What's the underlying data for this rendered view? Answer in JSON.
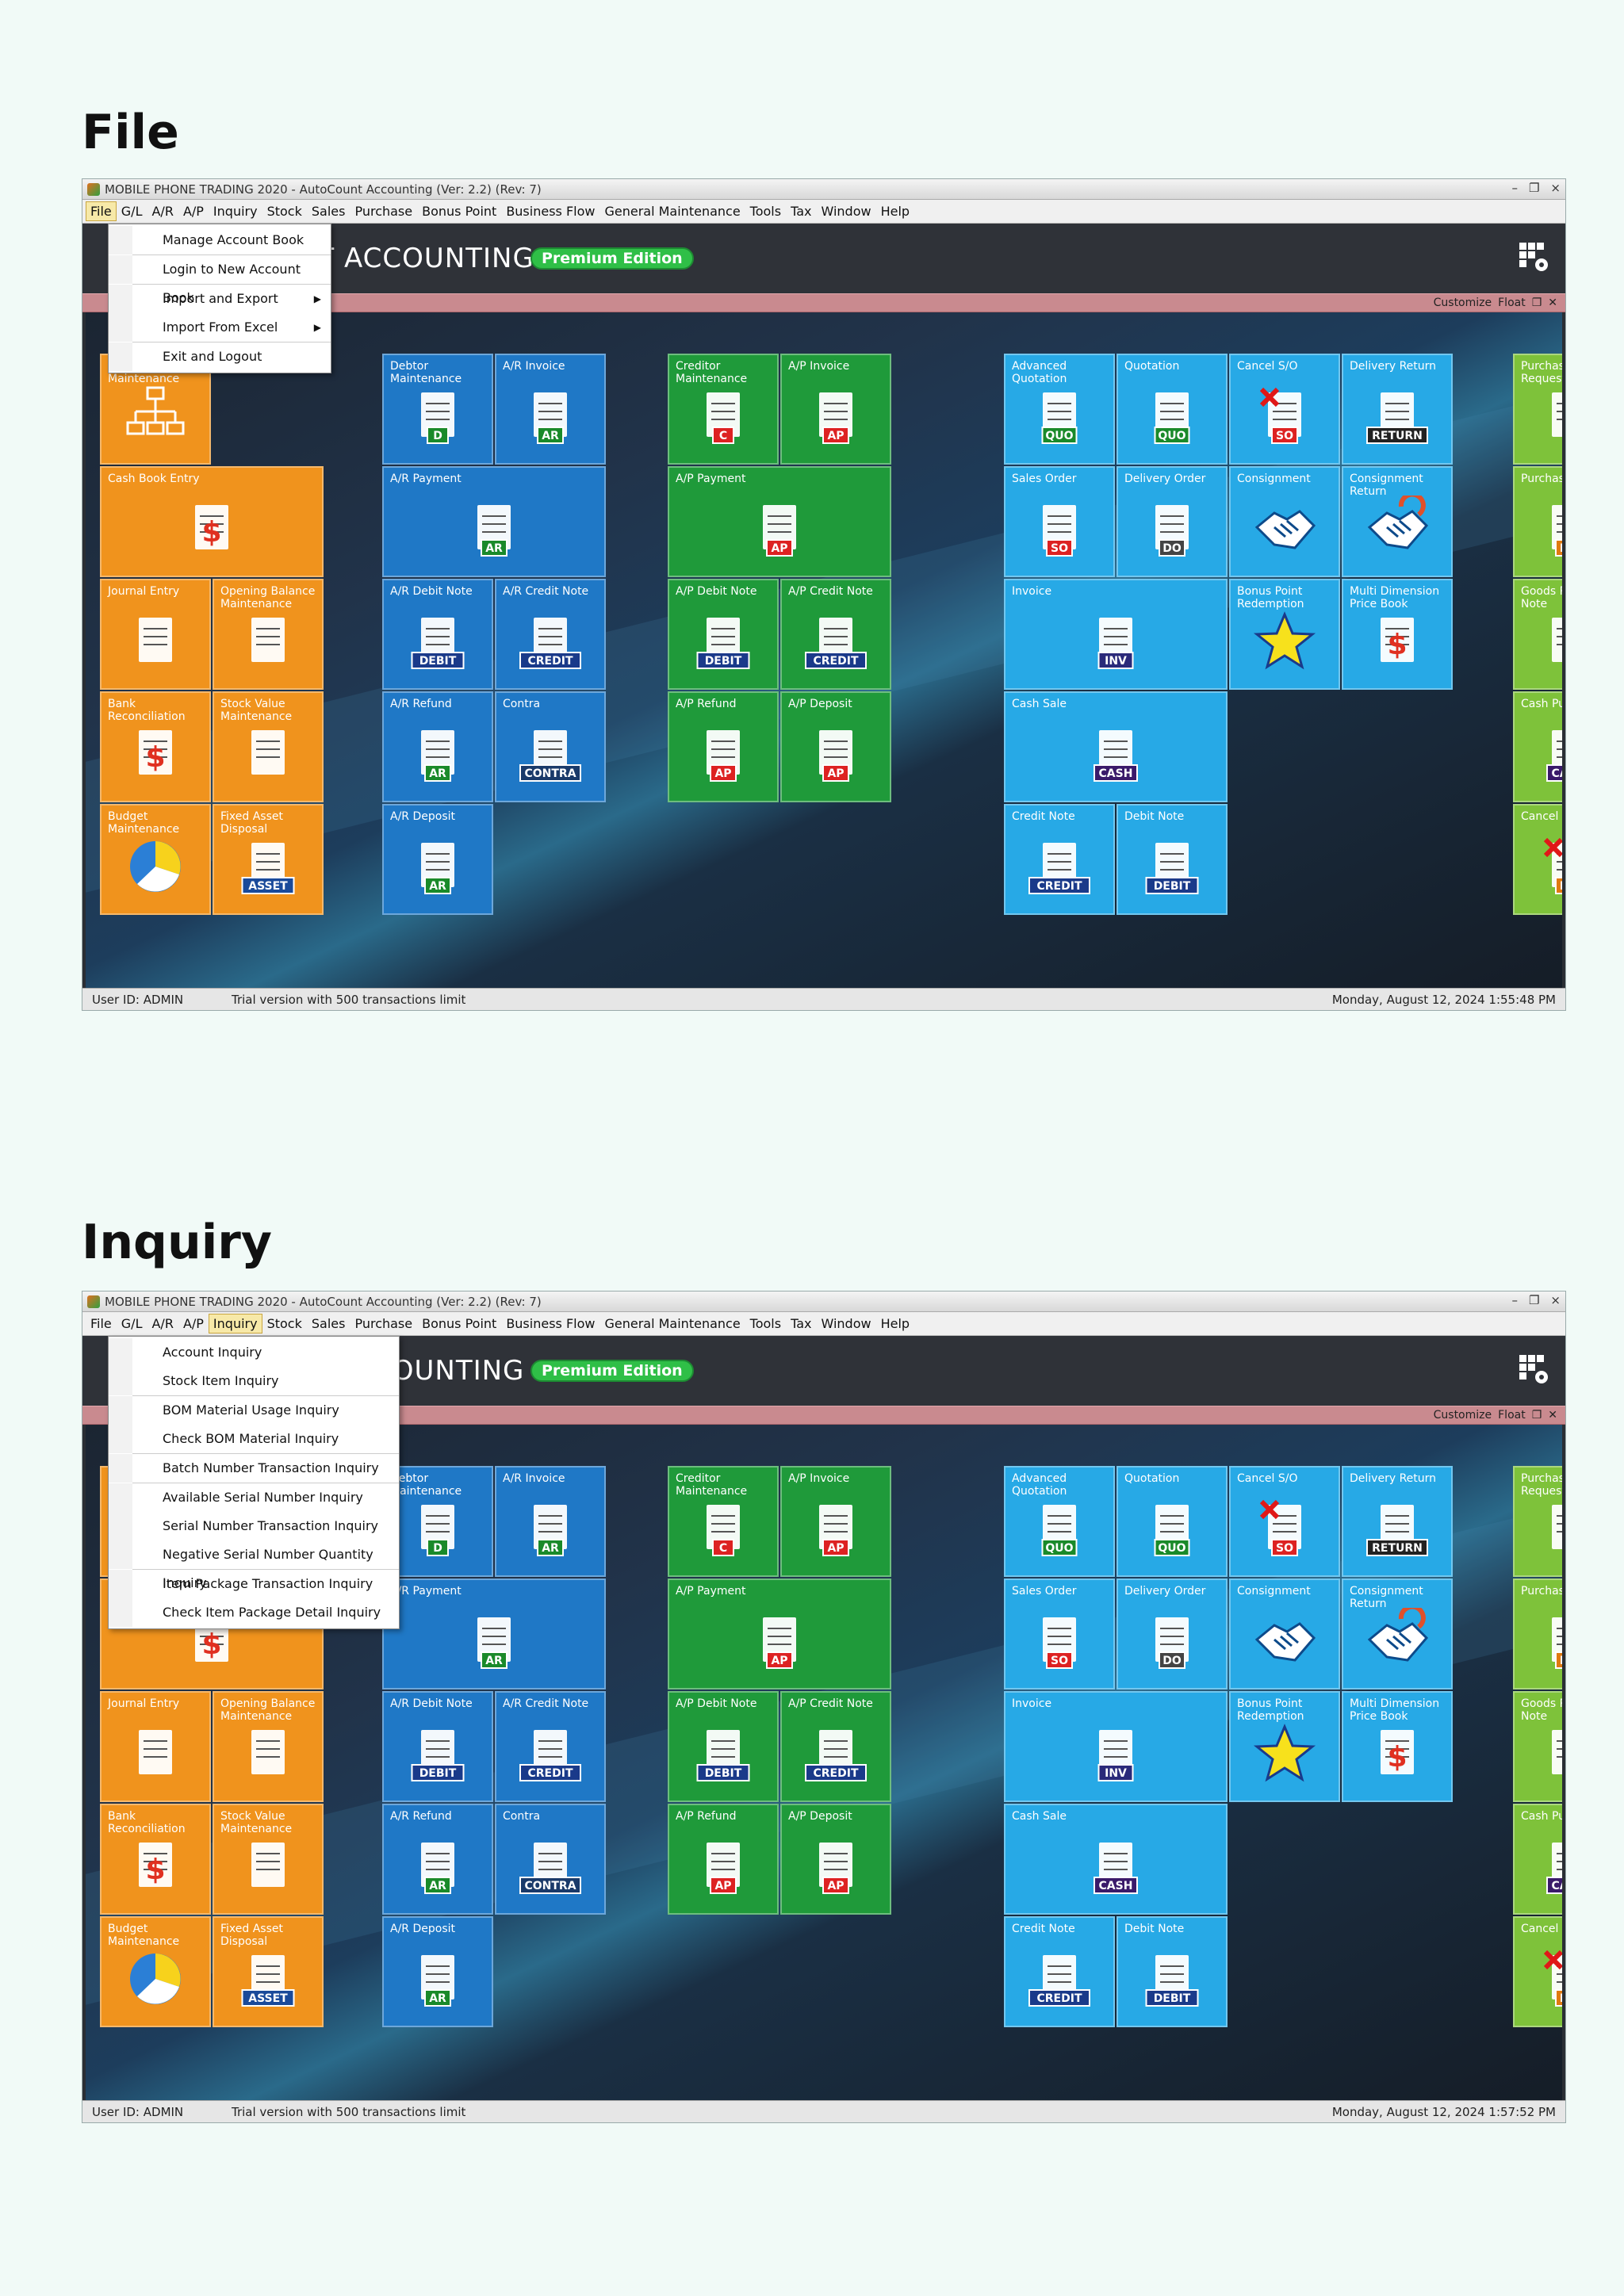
{
  "sections": [
    {
      "heading": "File",
      "window_title": "MOBILE PHONE TRADING 2020 - AutoCount Accounting (Ver: 2.2) (Rev: 7)",
      "active_menu": "File",
      "dropdown": [
        "Manage Account Book",
        "Login to New Account Book",
        "Import and Export",
        "Import From Excel",
        "Exit and Logout"
      ],
      "brand": "NT ACCOUNTING",
      "datetime": "Monday, August 12, 2024  1:55:48 PM"
    },
    {
      "heading": "Inquiry",
      "window_title": "MOBILE PHONE TRADING 2020 - AutoCount Accounting (Ver: 2.2) (Rev: 7)",
      "active_menu": "Inquiry",
      "dropdown": [
        "Account Inquiry",
        "Stock Item Inquiry",
        "BOM Material Usage Inquiry",
        "Check BOM Material Inquiry",
        "Batch Number Transaction Inquiry",
        "Available Serial Number Inquiry",
        "Serial Number Transaction Inquiry",
        "Negative Serial Number Quantity Inquiry",
        "Item Package Transaction Inquiry",
        "Check Item Package Detail Inquiry"
      ],
      "brand": "COUNTING",
      "datetime": "Monday, August 12, 2024  1:57:52 PM"
    }
  ],
  "menu": [
    "File",
    "G/L",
    "A/R",
    "A/P",
    "Inquiry",
    "Stock",
    "Sales",
    "Purchase",
    "Bonus Point",
    "Business Flow",
    "General Maintenance",
    "Tools",
    "Tax",
    "Window",
    "Help"
  ],
  "edition": "Premium Edition",
  "pinkbar": {
    "customize": "Customize",
    "float": "Float"
  },
  "status": {
    "user": "User ID: ADMIN",
    "trial": "Trial version with 500 transactions limit"
  },
  "tiles": [
    {
      "label": "Account Maintenance",
      "icon": "org-chart-icon",
      "color": "orange"
    },
    {
      "label": "Cash Book Entry",
      "icon": "cash-book-icon",
      "color": "orange"
    },
    {
      "label": "Journal Entry",
      "icon": "journal-icon",
      "color": "orange"
    },
    {
      "label": "Opening Balance Maintenance",
      "icon": "opening-balance-icon",
      "color": "orange"
    },
    {
      "label": "Bank Reconciliation",
      "icon": "bank-reconciliation-icon",
      "color": "orange"
    },
    {
      "label": "Stock Value Maintenance",
      "icon": "stock-value-icon",
      "color": "orange"
    },
    {
      "label": "Budget Maintenance",
      "icon": "pie-chart-icon",
      "color": "orange"
    },
    {
      "label": "Fixed Asset Disposal",
      "icon": "asset-icon",
      "badge": "ASSET",
      "color": "orange"
    },
    {
      "label": "Debtor Maintenance",
      "icon": "debtor-icon",
      "badge": "D",
      "color": "blue"
    },
    {
      "label": "A/R Invoice",
      "icon": "ar-invoice-icon",
      "badge": "AR",
      "color": "blue"
    },
    {
      "label": "A/R Payment",
      "icon": "ar-payment-icon",
      "badge": "AR",
      "color": "blue"
    },
    {
      "label": "A/R Debit Note",
      "icon": "ar-debit-icon",
      "badge": "DEBIT",
      "color": "blue"
    },
    {
      "label": "A/R Credit Note",
      "icon": "ar-credit-icon",
      "badge": "CREDIT",
      "color": "blue"
    },
    {
      "label": "A/R Refund",
      "icon": "ar-refund-icon",
      "badge": "AR",
      "color": "blue"
    },
    {
      "label": "Contra",
      "icon": "contra-icon",
      "badge": "CONTRA",
      "color": "blue"
    },
    {
      "label": "A/R Deposit",
      "icon": "ar-deposit-icon",
      "badge": "AR",
      "color": "blue"
    },
    {
      "label": "Creditor Maintenance",
      "icon": "creditor-icon",
      "badge": "C",
      "color": "green"
    },
    {
      "label": "A/P Invoice",
      "icon": "ap-invoice-icon",
      "badge": "AP",
      "color": "green"
    },
    {
      "label": "A/P Payment",
      "icon": "ap-payment-icon",
      "badge": "AP",
      "color": "green"
    },
    {
      "label": "A/P Debit Note",
      "icon": "ap-debit-icon",
      "badge": "DEBIT",
      "color": "green"
    },
    {
      "label": "A/P Credit Note",
      "icon": "ap-credit-icon",
      "badge": "CREDIT",
      "color": "green"
    },
    {
      "label": "A/P Refund",
      "icon": "ap-refund-icon",
      "badge": "AP",
      "color": "green"
    },
    {
      "label": "A/P Deposit",
      "icon": "ap-deposit-icon",
      "badge": "AP",
      "color": "green"
    },
    {
      "label": "Advanced Quotation",
      "icon": "quotation-icon",
      "badge": "QUO",
      "color": "cyan"
    },
    {
      "label": "Quotation",
      "icon": "quotation-icon",
      "badge": "QUO",
      "color": "cyan"
    },
    {
      "label": "Cancel S/O",
      "icon": "cancel-so-icon",
      "badge": "SO",
      "color": "cyan"
    },
    {
      "label": "Delivery Return",
      "icon": "delivery-return-icon",
      "badge": "RETURN",
      "color": "cyan"
    },
    {
      "label": "Sales Order",
      "icon": "sales-order-icon",
      "badge": "SO",
      "color": "cyan"
    },
    {
      "label": "Delivery Order",
      "icon": "delivery-order-icon",
      "badge": "DO",
      "color": "cyan"
    },
    {
      "label": "Consignment",
      "icon": "handshake-icon",
      "color": "cyan"
    },
    {
      "label": "Consignment Return",
      "icon": "handshake-return-icon",
      "color": "cyan"
    },
    {
      "label": "Invoice",
      "icon": "invoice-icon",
      "badge": "INV",
      "color": "cyan"
    },
    {
      "label": "Bonus Point Redemption",
      "icon": "star-icon",
      "color": "cyan"
    },
    {
      "label": "Multi Dimension Price Book",
      "icon": "price-book-icon",
      "color": "cyan"
    },
    {
      "label": "Cash Sale",
      "icon": "cash-sale-icon",
      "badge": "CASH",
      "color": "cyan"
    },
    {
      "label": "Credit Note",
      "icon": "credit-note-icon",
      "badge": "CREDIT",
      "color": "cyan"
    },
    {
      "label": "Debit Note",
      "icon": "debit-note-icon",
      "badge": "DEBIT",
      "color": "cyan"
    },
    {
      "label": "Purchase Request",
      "icon": "purchase-request-icon",
      "color": "lime"
    },
    {
      "label": "Purchase Order",
      "icon": "purchase-order-icon",
      "badge": "PO",
      "color": "lime"
    },
    {
      "label": "Goods Received Note",
      "icon": "goods-received-icon",
      "color": "lime"
    },
    {
      "label": "Cash Purchase",
      "icon": "cash-purchase-icon",
      "badge": "CASH",
      "color": "lime"
    },
    {
      "label": "Cancel P/O",
      "icon": "cancel-po-icon",
      "badge": "PO",
      "color": "lime"
    }
  ]
}
